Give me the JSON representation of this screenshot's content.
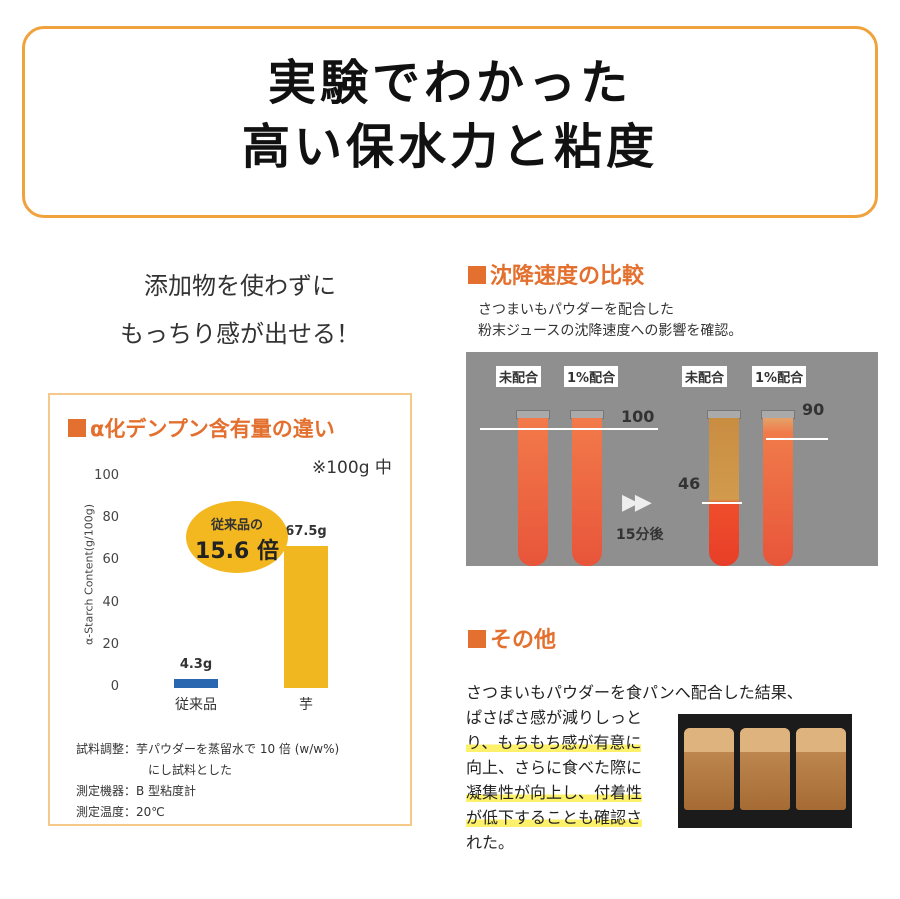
{
  "title": {
    "line1": "実験でわかった",
    "line2": "高い保水力と粘度"
  },
  "intro": {
    "line1": "添加物を使わずに",
    "line2": "もっちり感が出せる！"
  },
  "starch": {
    "heading": "α化デンプン含有量の違い",
    "per100": "※100g 中",
    "badge_line1": "従来品の",
    "badge_line2": "15.6 倍",
    "notes": {
      "line1": "試料調整：芋パウダーを蒸留水で 10 倍 (w/w%)",
      "line1b": "にし試料とした",
      "line2": "測定機器：B 型粘度計",
      "line3": "測定温度：20℃"
    }
  },
  "chart_data": {
    "type": "bar",
    "categories": [
      "従来品",
      "芋"
    ],
    "values": [
      4.3,
      67.5
    ],
    "value_labels": [
      "4.3g",
      "67.5g"
    ],
    "ylabel": "α-Starch Content(g/100g)",
    "yticks": [
      "100",
      "80",
      "60",
      "40",
      "20",
      "0"
    ],
    "ylim": [
      0,
      100
    ],
    "colors": [
      "#2a67b1",
      "#f0b720"
    ]
  },
  "sedimentation": {
    "heading": "沈降速度の比較",
    "desc1": "さつまいもパウダーを配合した",
    "desc2": "粉末ジュースの沈降速度への影響を確認。",
    "label_none1": "未配合",
    "label_one1": "1%配合",
    "label_none2": "未配合",
    "label_one2": "1%配合",
    "value_left": "100",
    "value_mid": "46",
    "value_right": "90",
    "after": "15分後",
    "arrow": "▶▶"
  },
  "other": {
    "heading": "その他",
    "text1": "さつまいもパウダーを食パンへ配合した結果、",
    "text2": "ぱさぱさ感が減りしっと",
    "text3": "り、もちもち感が有意に",
    "text4": "向上、さらに食べた際に",
    "text5": "凝集性が向上し、付着性",
    "text6": "が低下することも確認さ",
    "text7": "れた。"
  }
}
